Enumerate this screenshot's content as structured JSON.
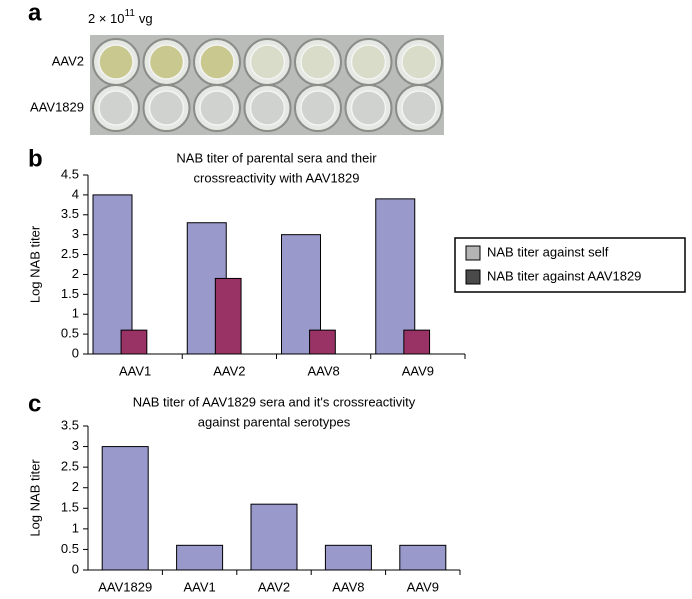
{
  "panel_a": {
    "label": "a",
    "dose_base": "2 × 10",
    "dose_exponent": "11",
    "dose_unit": "vg",
    "rows": [
      "AAV2",
      "AAV1829"
    ]
  },
  "chart_data": [
    {
      "type": "bar",
      "panel_label": "b",
      "title": [
        "NAB titer of parental sera and their",
        "crossreactivity with AAV1829"
      ],
      "y_label": "Log NAB titer",
      "categories": [
        "AAV1",
        "AAV2",
        "AAV8",
        "AAV9"
      ],
      "series": [
        {
          "name": "NAB titer against self",
          "color": "#9999cc",
          "legend_color": "#b4b4b4",
          "values": [
            4.0,
            3.3,
            3.0,
            3.9
          ]
        },
        {
          "name": "NAB titer against AAV1829",
          "color": "#993366",
          "legend_color": "#4a4a4a",
          "values": [
            0.6,
            1.9,
            0.6,
            0.6
          ]
        }
      ],
      "ylim": [
        0,
        4.5
      ],
      "yticks": [
        0,
        0.5,
        1,
        1.5,
        2,
        2.5,
        3,
        3.5,
        4,
        4.5
      ],
      "legend": "right"
    },
    {
      "type": "bar",
      "panel_label": "c",
      "title": [
        "NAB titer of AAV1829 sera and it's crossreactivity",
        "against parental serotypes"
      ],
      "y_label": "Log NAB titer",
      "categories": [
        "AAV1829",
        "AAV1",
        "AAV2",
        "AAV8",
        "AAV9"
      ],
      "series": [
        {
          "color": "#9999cc",
          "values": [
            3.0,
            0.6,
            1.6,
            0.6,
            0.6
          ]
        }
      ],
      "ylim": [
        0,
        3.5
      ],
      "yticks": [
        0,
        0.5,
        1,
        1.5,
        2,
        2.5,
        3,
        3.5
      ]
    }
  ]
}
